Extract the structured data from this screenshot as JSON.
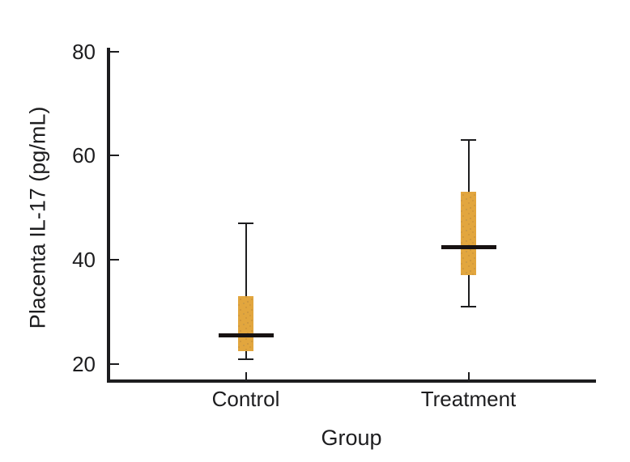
{
  "chart_data": {
    "type": "box",
    "title": "",
    "xlabel": "Group",
    "ylabel": "Placenta IL-17 (pg/mL)",
    "categories": [
      "Control",
      "Treatment"
    ],
    "yticks": [
      80,
      60,
      40,
      20
    ],
    "ylim": [
      17,
      80
    ],
    "grid": false,
    "legend": "none",
    "boxes": [
      {
        "category": "Control",
        "min": 21,
        "q1": 22.5,
        "median": 25.5,
        "q3": 33,
        "max": 47
      },
      {
        "category": "Treatment",
        "min": 31,
        "q1": 37,
        "median": 42.5,
        "q3": 53,
        "max": 63
      }
    ],
    "colors": {
      "box_fill": "#e2a63e",
      "box_speckle": "#96643c",
      "line": "#1d1d1f",
      "median": "#171212",
      "background": "#ffffff"
    }
  }
}
